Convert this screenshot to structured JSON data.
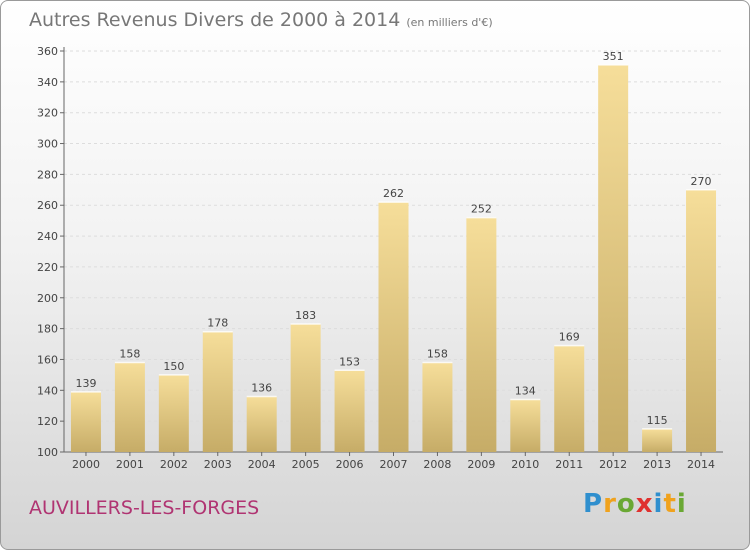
{
  "title": "Autres Revenus Divers de 2000 à 2014",
  "title_unit": "(en milliers d'€)",
  "location_label": "AUVILLERS-LES-FORGES",
  "logo": {
    "letters": [
      "P",
      "r",
      "o",
      "x",
      "i",
      "t",
      "i"
    ],
    "colors": [
      "#2f8fce",
      "#f0a21d",
      "#6aa834",
      "#e0312f",
      "#2f8fce",
      "#f0a21d",
      "#6aa834"
    ]
  },
  "colors": {
    "bar_light": "#f6de9a",
    "bar_dark": "#c6ac67",
    "grid": "#dddddd",
    "axis": "#666666",
    "text": "#444444"
  },
  "chart_data": {
    "type": "bar",
    "title": "Autres Revenus Divers de 2000 à 2014",
    "subtitle": "(en milliers d'€)",
    "xlabel": "",
    "ylabel": "",
    "categories": [
      "2000",
      "2001",
      "2002",
      "2003",
      "2004",
      "2005",
      "2006",
      "2007",
      "2008",
      "2009",
      "2010",
      "2011",
      "2012",
      "2013",
      "2014"
    ],
    "values": [
      139,
      158,
      150,
      178,
      136,
      183,
      153,
      262,
      158,
      252,
      134,
      169,
      351,
      115,
      270
    ],
    "value_labels": [
      "139",
      "158",
      "150",
      "178",
      "136",
      "183",
      "153",
      "262",
      "158",
      "252",
      "134",
      "169",
      "351",
      "115",
      "270"
    ],
    "ylim": [
      100,
      360
    ],
    "yticks": [
      "100",
      "120",
      "140",
      "160",
      "180",
      "200",
      "220",
      "240",
      "260",
      "280",
      "300",
      "320",
      "340",
      "360"
    ],
    "grid": true,
    "legend": "none"
  }
}
